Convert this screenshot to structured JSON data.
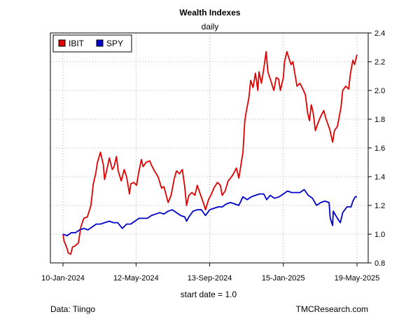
{
  "chart_data": {
    "type": "line",
    "title": "Wealth Indexes",
    "subtitle": "daily",
    "xlabel": "start date = 1.0",
    "ylabel": "",
    "source_left": "Data: Tiingo",
    "source_right": "TMCResearch.com",
    "xlim": [
      "2024-01-10",
      "2025-05-19"
    ],
    "ylim": [
      0.8,
      2.4
    ],
    "y_ticks": [
      0.8,
      1.0,
      1.2,
      1.4,
      1.6,
      1.8,
      2.0,
      2.2,
      2.4
    ],
    "y_tick_labels": [
      "0.8",
      "1.0",
      "1.2",
      "1.4",
      "1.6",
      "1.8",
      "2.0",
      "2.2",
      "2.4"
    ],
    "x_ticks": [
      "2024-01-10",
      "2024-05-12",
      "2024-09-13",
      "2025-01-15",
      "2025-05-19"
    ],
    "x_tick_labels": [
      "10-Jan-2024",
      "12-May-2024",
      "13-Sep-2024",
      "15-Jan-2025",
      "19-May-2025"
    ],
    "grid": true,
    "legend_position": "top-left",
    "series": [
      {
        "name": "IBIT",
        "color": "#e00000",
        "points": [
          [
            "2024-01-10",
            1.0
          ],
          [
            "2024-01-12",
            0.95
          ],
          [
            "2024-01-16",
            0.91
          ],
          [
            "2024-01-19",
            0.87
          ],
          [
            "2024-01-23",
            0.86
          ],
          [
            "2024-01-26",
            0.91
          ],
          [
            "2024-01-31",
            0.92
          ],
          [
            "2024-02-05",
            0.94
          ],
          [
            "2024-02-09",
            1.05
          ],
          [
            "2024-02-14",
            1.11
          ],
          [
            "2024-02-20",
            1.12
          ],
          [
            "2024-02-26",
            1.2
          ],
          [
            "2024-03-01",
            1.35
          ],
          [
            "2024-03-05",
            1.42
          ],
          [
            "2024-03-08",
            1.5
          ],
          [
            "2024-03-13",
            1.57
          ],
          [
            "2024-03-18",
            1.48
          ],
          [
            "2024-03-20",
            1.38
          ],
          [
            "2024-03-25",
            1.47
          ],
          [
            "2024-03-28",
            1.53
          ],
          [
            "2024-04-02",
            1.45
          ],
          [
            "2024-04-05",
            1.47
          ],
          [
            "2024-04-09",
            1.54
          ],
          [
            "2024-04-12",
            1.44
          ],
          [
            "2024-04-17",
            1.37
          ],
          [
            "2024-04-22",
            1.45
          ],
          [
            "2024-04-26",
            1.4
          ],
          [
            "2024-05-01",
            1.28
          ],
          [
            "2024-05-03",
            1.35
          ],
          [
            "2024-05-08",
            1.36
          ],
          [
            "2024-05-13",
            1.34
          ],
          [
            "2024-05-16",
            1.42
          ],
          [
            "2024-05-21",
            1.52
          ],
          [
            "2024-05-24",
            1.47
          ],
          [
            "2024-05-29",
            1.5
          ],
          [
            "2024-06-04",
            1.51
          ],
          [
            "2024-06-07",
            1.48
          ],
          [
            "2024-06-12",
            1.44
          ],
          [
            "2024-06-18",
            1.4
          ],
          [
            "2024-06-24",
            1.32
          ],
          [
            "2024-06-28",
            1.33
          ],
          [
            "2024-07-05",
            1.22
          ],
          [
            "2024-07-10",
            1.27
          ],
          [
            "2024-07-15",
            1.38
          ],
          [
            "2024-07-19",
            1.44
          ],
          [
            "2024-07-24",
            1.42
          ],
          [
            "2024-07-29",
            1.45
          ],
          [
            "2024-08-02",
            1.33
          ],
          [
            "2024-08-05",
            1.2
          ],
          [
            "2024-08-09",
            1.27
          ],
          [
            "2024-08-14",
            1.29
          ],
          [
            "2024-08-19",
            1.27
          ],
          [
            "2024-08-23",
            1.34
          ],
          [
            "2024-08-28",
            1.28
          ],
          [
            "2024-09-03",
            1.21
          ],
          [
            "2024-09-06",
            1.17
          ],
          [
            "2024-09-11",
            1.24
          ],
          [
            "2024-09-16",
            1.28
          ],
          [
            "2024-09-20",
            1.32
          ],
          [
            "2024-09-26",
            1.36
          ],
          [
            "2024-10-01",
            1.34
          ],
          [
            "2024-10-04",
            1.27
          ],
          [
            "2024-10-09",
            1.3
          ],
          [
            "2024-10-14",
            1.37
          ],
          [
            "2024-10-18",
            1.39
          ],
          [
            "2024-10-23",
            1.42
          ],
          [
            "2024-10-28",
            1.46
          ],
          [
            "2024-11-01",
            1.39
          ],
          [
            "2024-11-05",
            1.49
          ],
          [
            "2024-11-08",
            1.57
          ],
          [
            "2024-11-11",
            1.78
          ],
          [
            "2024-11-13",
            1.84
          ],
          [
            "2024-11-18",
            1.95
          ],
          [
            "2024-11-21",
            2.07
          ],
          [
            "2024-11-25",
            2.02
          ],
          [
            "2024-11-29",
            2.12
          ],
          [
            "2024-12-03",
            2.0
          ],
          [
            "2024-12-05",
            2.13
          ],
          [
            "2024-12-09",
            2.05
          ],
          [
            "2024-12-13",
            2.15
          ],
          [
            "2024-12-17",
            2.27
          ],
          [
            "2024-12-20",
            2.13
          ],
          [
            "2024-12-24",
            2.08
          ],
          [
            "2024-12-30",
            2.0
          ],
          [
            "2025-01-03",
            2.09
          ],
          [
            "2025-01-07",
            2.08
          ],
          [
            "2025-01-10",
            2.0
          ],
          [
            "2025-01-15",
            2.09
          ],
          [
            "2025-01-17",
            2.2
          ],
          [
            "2025-01-21",
            2.27
          ],
          [
            "2025-01-24",
            2.23
          ],
          [
            "2025-01-28",
            2.18
          ],
          [
            "2025-01-31",
            2.2
          ],
          [
            "2025-02-04",
            2.1
          ],
          [
            "2025-02-07",
            2.03
          ],
          [
            "2025-02-12",
            2.05
          ],
          [
            "2025-02-18",
            2.0
          ],
          [
            "2025-02-21",
            1.97
          ],
          [
            "2025-02-25",
            1.84
          ],
          [
            "2025-02-28",
            1.79
          ],
          [
            "2025-03-03",
            1.9
          ],
          [
            "2025-03-06",
            1.85
          ],
          [
            "2025-03-10",
            1.72
          ],
          [
            "2025-03-14",
            1.77
          ],
          [
            "2025-03-19",
            1.82
          ],
          [
            "2025-03-24",
            1.86
          ],
          [
            "2025-03-28",
            1.8
          ],
          [
            "2025-04-03",
            1.73
          ],
          [
            "2025-04-08",
            1.64
          ],
          [
            "2025-04-11",
            1.72
          ],
          [
            "2025-04-16",
            1.75
          ],
          [
            "2025-04-22",
            1.88
          ],
          [
            "2025-04-25",
            2.0
          ],
          [
            "2025-04-30",
            2.03
          ],
          [
            "2025-05-05",
            2.01
          ],
          [
            "2025-05-08",
            2.12
          ],
          [
            "2025-05-12",
            2.21
          ],
          [
            "2025-05-15",
            2.18
          ],
          [
            "2025-05-19",
            2.25
          ]
        ]
      },
      {
        "name": "SPY",
        "color": "#0000cc",
        "points": [
          [
            "2024-01-10",
            1.0
          ],
          [
            "2024-01-17",
            0.99
          ],
          [
            "2024-01-24",
            1.01
          ],
          [
            "2024-01-31",
            1.01
          ],
          [
            "2024-02-07",
            1.03
          ],
          [
            "2024-02-14",
            1.04
          ],
          [
            "2024-02-21",
            1.03
          ],
          [
            "2024-02-28",
            1.05
          ],
          [
            "2024-03-06",
            1.07
          ],
          [
            "2024-03-13",
            1.07
          ],
          [
            "2024-03-20",
            1.08
          ],
          [
            "2024-03-28",
            1.09
          ],
          [
            "2024-04-04",
            1.08
          ],
          [
            "2024-04-11",
            1.08
          ],
          [
            "2024-04-19",
            1.04
          ],
          [
            "2024-04-26",
            1.07
          ],
          [
            "2024-05-03",
            1.07
          ],
          [
            "2024-05-10",
            1.09
          ],
          [
            "2024-05-17",
            1.11
          ],
          [
            "2024-05-24",
            1.11
          ],
          [
            "2024-05-31",
            1.11
          ],
          [
            "2024-06-07",
            1.13
          ],
          [
            "2024-06-14",
            1.14
          ],
          [
            "2024-06-21",
            1.15
          ],
          [
            "2024-06-28",
            1.14
          ],
          [
            "2024-07-05",
            1.16
          ],
          [
            "2024-07-12",
            1.17
          ],
          [
            "2024-07-19",
            1.15
          ],
          [
            "2024-07-26",
            1.13
          ],
          [
            "2024-08-02",
            1.12
          ],
          [
            "2024-08-05",
            1.09
          ],
          [
            "2024-08-09",
            1.12
          ],
          [
            "2024-08-16",
            1.16
          ],
          [
            "2024-08-23",
            1.17
          ],
          [
            "2024-08-30",
            1.17
          ],
          [
            "2024-09-06",
            1.13
          ],
          [
            "2024-09-13",
            1.17
          ],
          [
            "2024-09-20",
            1.18
          ],
          [
            "2024-09-27",
            1.19
          ],
          [
            "2024-10-04",
            1.19
          ],
          [
            "2024-10-11",
            1.21
          ],
          [
            "2024-10-18",
            1.22
          ],
          [
            "2024-10-25",
            1.21
          ],
          [
            "2024-11-01",
            1.2
          ],
          [
            "2024-11-08",
            1.26
          ],
          [
            "2024-11-15",
            1.24
          ],
          [
            "2024-11-22",
            1.26
          ],
          [
            "2024-11-29",
            1.27
          ],
          [
            "2024-12-06",
            1.28
          ],
          [
            "2024-12-13",
            1.28
          ],
          [
            "2024-12-18",
            1.24
          ],
          [
            "2024-12-24",
            1.27
          ],
          [
            "2024-12-31",
            1.25
          ],
          [
            "2025-01-08",
            1.26
          ],
          [
            "2025-01-15",
            1.28
          ],
          [
            "2025-01-22",
            1.3
          ],
          [
            "2025-01-29",
            1.29
          ],
          [
            "2025-02-05",
            1.29
          ],
          [
            "2025-02-12",
            1.29
          ],
          [
            "2025-02-19",
            1.31
          ],
          [
            "2025-02-26",
            1.27
          ],
          [
            "2025-03-05",
            1.25
          ],
          [
            "2025-03-12",
            1.2
          ],
          [
            "2025-03-19",
            1.22
          ],
          [
            "2025-03-26",
            1.23
          ],
          [
            "2025-04-02",
            1.22
          ],
          [
            "2025-04-04",
            1.11
          ],
          [
            "2025-04-08",
            1.06
          ],
          [
            "2025-04-09",
            1.16
          ],
          [
            "2025-04-16",
            1.11
          ],
          [
            "2025-04-21",
            1.08
          ],
          [
            "2025-04-25",
            1.15
          ],
          [
            "2025-05-02",
            1.19
          ],
          [
            "2025-05-09",
            1.19
          ],
          [
            "2025-05-12",
            1.23
          ],
          [
            "2025-05-16",
            1.26
          ],
          [
            "2025-05-19",
            1.26
          ]
        ]
      }
    ]
  }
}
